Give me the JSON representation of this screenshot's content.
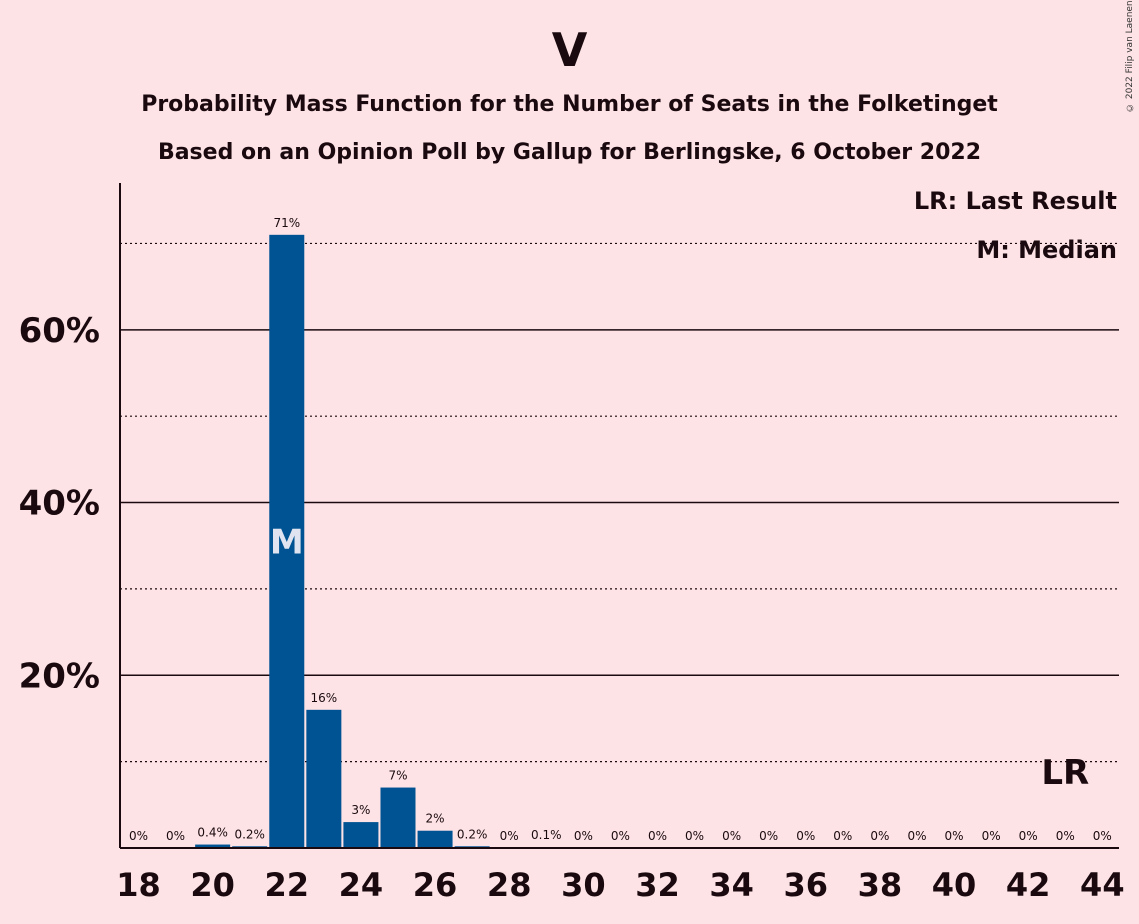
{
  "title": "V",
  "subtitle1": "Probability Mass Function for the Number of Seats in the Folketinget",
  "subtitle2": "Based on an Opinion Poll by Gallup for Berlingske, 6 October 2022",
  "copyright": "© 2022 Filip van Laenen",
  "colors": {
    "background": "#fde3e6",
    "bar": "#005393",
    "text": "#1a0a0f",
    "median_marker": "#dfe4f0"
  },
  "legend": {
    "last_result": "LR: Last Result",
    "median": "M: Median"
  },
  "chart_data": {
    "type": "bar",
    "x": [
      18,
      19,
      20,
      21,
      22,
      23,
      24,
      25,
      26,
      27,
      28,
      29,
      30,
      31,
      32,
      33,
      34,
      35,
      36,
      37,
      38,
      39,
      40,
      41,
      42,
      43,
      44
    ],
    "values": [
      0,
      0,
      0.4,
      0.2,
      71,
      16,
      3,
      7,
      2,
      0.2,
      0,
      0.1,
      0,
      0,
      0,
      0,
      0,
      0,
      0,
      0,
      0,
      0,
      0,
      0,
      0,
      0,
      0
    ],
    "labels": [
      "0%",
      "0%",
      "0.4%",
      "0.2%",
      "71%",
      "16%",
      "3%",
      "7%",
      "2%",
      "0.2%",
      "0%",
      "0.1%",
      "0%",
      "0%",
      "0%",
      "0%",
      "0%",
      "0%",
      "0%",
      "0%",
      "0%",
      "0%",
      "0%",
      "0%",
      "0%",
      "0%",
      "0%"
    ],
    "x_ticks": [
      18,
      20,
      22,
      24,
      26,
      28,
      30,
      32,
      34,
      36,
      38,
      40,
      42,
      44
    ],
    "y_ticks": [
      20,
      40,
      60
    ],
    "y_tick_labels": [
      "20%",
      "40%",
      "60%"
    ],
    "y_minor_gridlines": [
      10,
      30,
      50,
      70
    ],
    "ylim": [
      0,
      77
    ],
    "median_seat": 22,
    "median_label": "M",
    "last_result_seat": 43,
    "last_result_label": "LR",
    "xlabel": "",
    "ylabel": ""
  }
}
